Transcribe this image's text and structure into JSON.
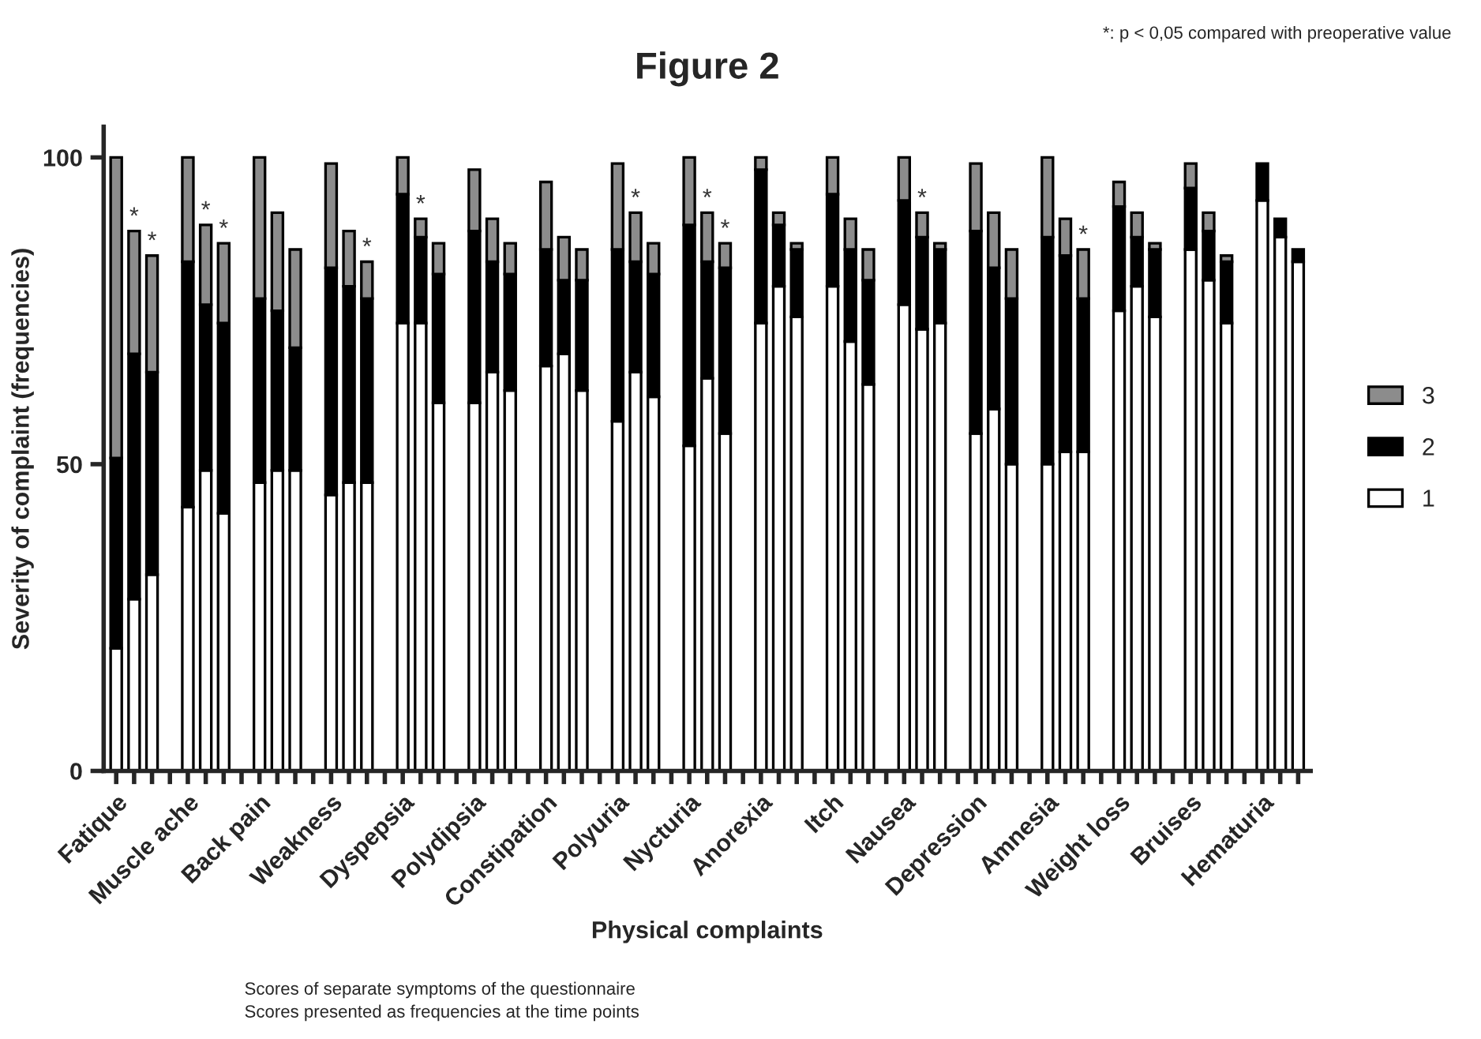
{
  "chart_data": {
    "type": "bar",
    "title": "Figure 2",
    "xlabel": "Physical complaints",
    "ylabel": "Severity of complaint (frequencies)",
    "annotations": [
      "*: p < 0,05 compared with preoperative value",
      "Scores of separate symptoms of the questionnaire",
      "Scores presented as frequencies at the time points"
    ],
    "categories": [
      "Fatique",
      null,
      null,
      null,
      "Muscle ache",
      null,
      null,
      null,
      "Back pain",
      null,
      null,
      null,
      "Weakness",
      null,
      null,
      null,
      "Dyspepsia",
      null,
      null,
      null,
      "Polydipsia",
      null,
      null,
      null,
      "Constipation",
      null,
      null,
      null,
      "Polyuria",
      null,
      null,
      null,
      "Nycturia",
      null,
      null,
      null,
      "Anorexia",
      null,
      null,
      null,
      "Itch",
      null,
      null,
      null,
      "Nausea",
      null,
      null,
      null,
      "Depression",
      null,
      null,
      null,
      "Amnesia",
      null,
      null,
      null,
      "Weight loss",
      null,
      null,
      null,
      "Bruises",
      null,
      null,
      null,
      "Hematuria",
      null,
      null
    ],
    "stacked": true,
    "series": [
      {
        "name": "1",
        "color": "#ffffff",
        "values": [
          20,
          28,
          32,
          null,
          43,
          49,
          42,
          null,
          47,
          49,
          49,
          null,
          45,
          47,
          47,
          null,
          73,
          73,
          60,
          null,
          60,
          65,
          62,
          null,
          66,
          68,
          62,
          null,
          57,
          65,
          61,
          null,
          53,
          64,
          55,
          null,
          73,
          79,
          74,
          null,
          79,
          70,
          63,
          null,
          76,
          72,
          73,
          null,
          55,
          59,
          50,
          null,
          50,
          52,
          52,
          null,
          75,
          79,
          74,
          null,
          85,
          80,
          73,
          null,
          93,
          87,
          83
        ]
      },
      {
        "name": "2",
        "color": "#000000",
        "values": [
          31,
          40,
          33,
          null,
          40,
          27,
          31,
          null,
          30,
          26,
          20,
          null,
          37,
          32,
          30,
          null,
          21,
          14,
          21,
          null,
          28,
          18,
          19,
          null,
          19,
          12,
          18,
          null,
          28,
          18,
          20,
          null,
          36,
          19,
          27,
          null,
          25,
          10,
          11,
          null,
          15,
          15,
          17,
          null,
          17,
          15,
          12,
          null,
          33,
          23,
          27,
          null,
          37,
          32,
          25,
          null,
          17,
          8,
          11,
          null,
          10,
          8,
          10,
          null,
          6,
          3,
          2
        ]
      },
      {
        "name": "3",
        "color": "#8c8c8c",
        "values": [
          49,
          20,
          19,
          null,
          17,
          13,
          13,
          null,
          23,
          16,
          16,
          null,
          17,
          9,
          6,
          null,
          6,
          3,
          5,
          null,
          10,
          7,
          5,
          null,
          11,
          7,
          5,
          null,
          14,
          8,
          5,
          null,
          11,
          8,
          4,
          null,
          2,
          2,
          1,
          null,
          6,
          5,
          5,
          null,
          7,
          4,
          1,
          null,
          11,
          9,
          8,
          null,
          13,
          6,
          8,
          null,
          4,
          4,
          1,
          null,
          4,
          3,
          1,
          null,
          null,
          null,
          null
        ],
        "value_labels": [
          null,
          "*",
          "*",
          null,
          null,
          "*",
          "*",
          null,
          null,
          null,
          null,
          null,
          null,
          null,
          "*",
          null,
          null,
          "*",
          null,
          null,
          null,
          null,
          null,
          null,
          null,
          null,
          null,
          null,
          null,
          "*",
          null,
          null,
          null,
          "*",
          "*",
          null,
          null,
          null,
          null,
          null,
          null,
          null,
          null,
          null,
          null,
          "*",
          null,
          null,
          null,
          null,
          null,
          null,
          null,
          null,
          "*",
          null,
          null,
          null,
          null,
          null,
          null,
          null,
          null,
          null,
          null,
          null,
          null
        ]
      }
    ],
    "ylim": [
      0,
      105
    ],
    "yticks": [
      0,
      50,
      100
    ],
    "legend": "right",
    "grid": false
  }
}
